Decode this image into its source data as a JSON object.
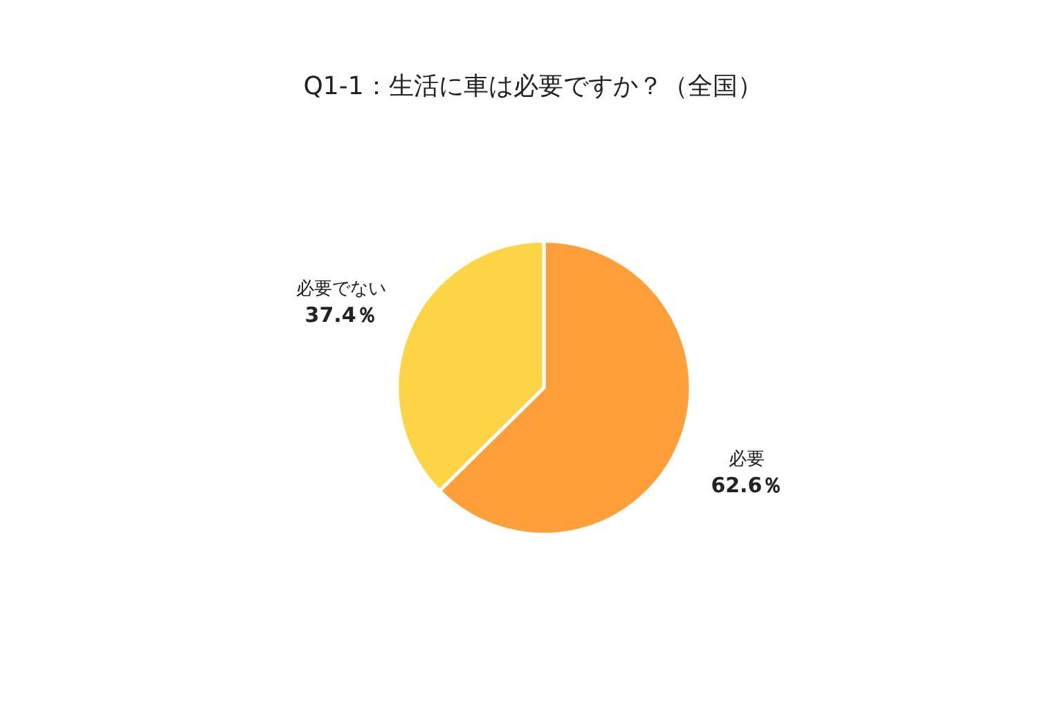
{
  "chart_data": {
    "type": "pie",
    "title": "Q1-1：生活に車は必要ですか？（全国）",
    "categories": [
      "必要",
      "必要でない"
    ],
    "values": [
      62.6,
      37.4
    ],
    "colors": [
      "#ff9f3a",
      "#fdd446"
    ],
    "value_labels": [
      "62.6％",
      "37.4％"
    ]
  }
}
